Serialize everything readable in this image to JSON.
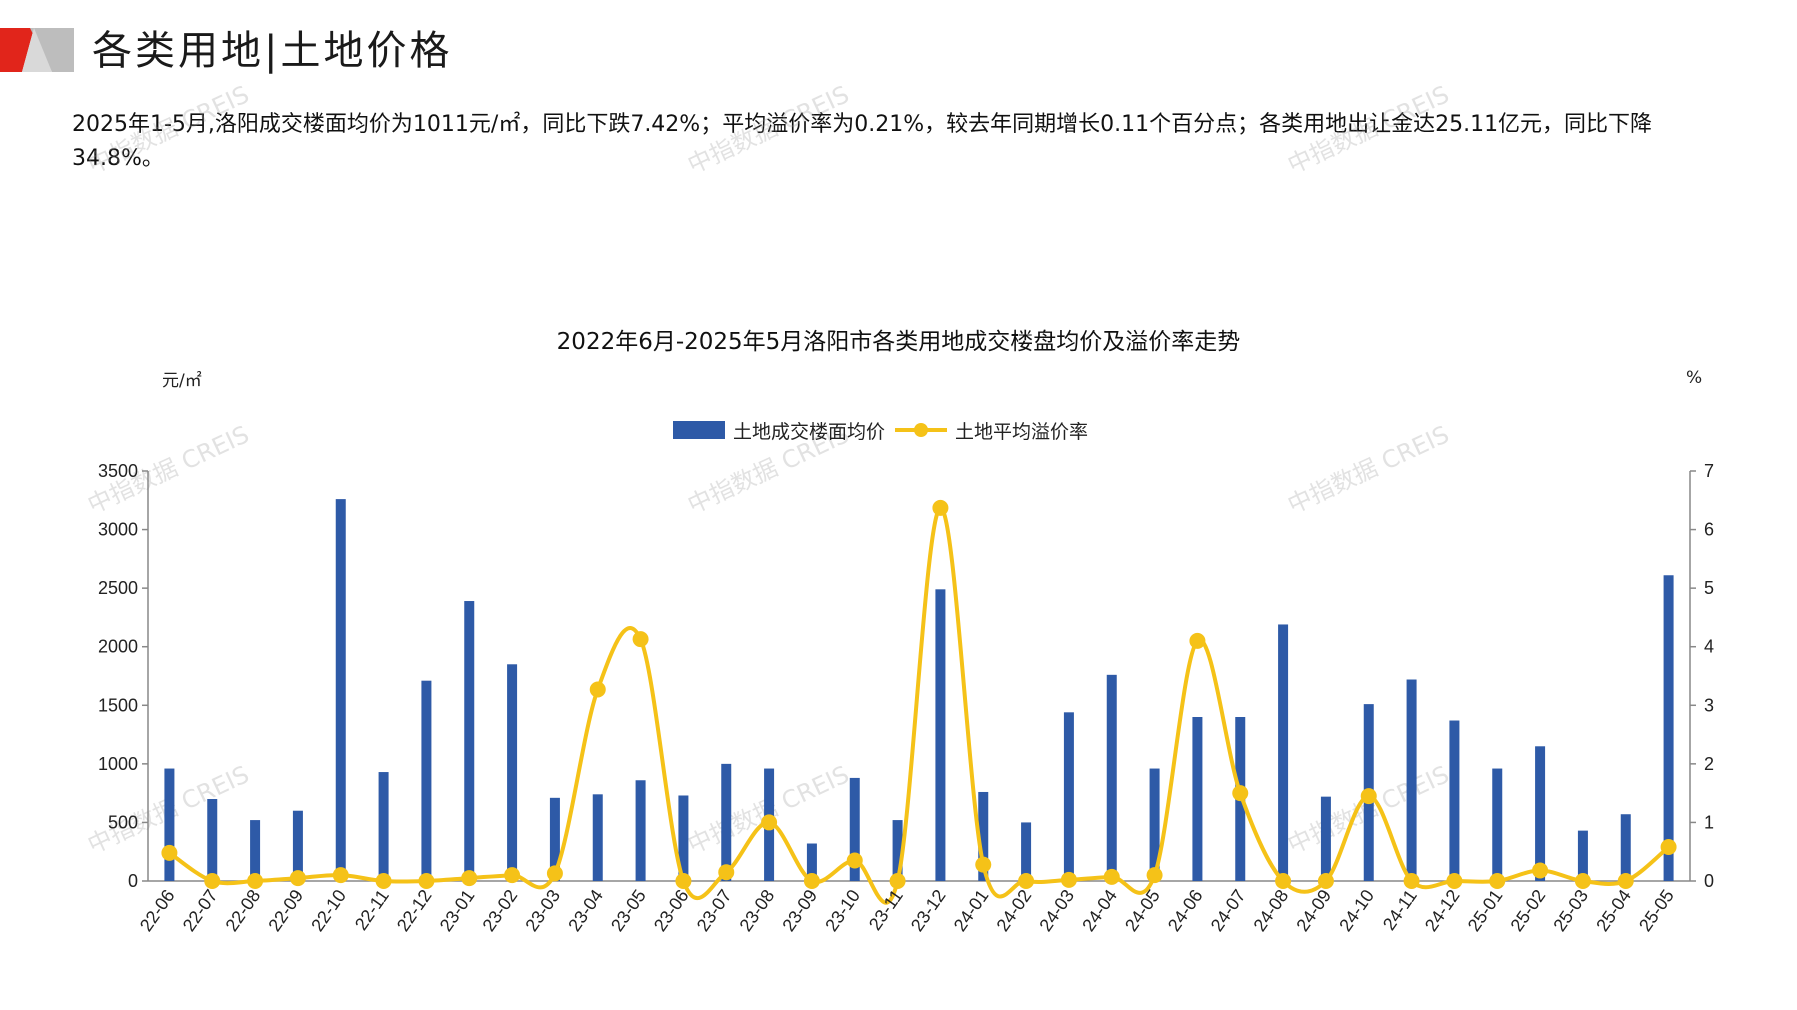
{
  "header": {
    "title": "各类用地|土地价格",
    "accent_color": "#E1251B",
    "mark_gray": "#BDBDBD"
  },
  "summary": {
    "text": "2025年1-5月,洛阳成交楼面均价为1011元/㎡，同比下跌7.42%；平均溢价率为0.21%，较去年同期增长0.11个百分点；各类用地出让金达25.11亿元，同比下降34.8%。"
  },
  "watermark": {
    "text": "中指数据 CREIS"
  },
  "chart_data": {
    "type": "bar",
    "title": "2022年6月-2025年5月洛阳市各类用地成交楼盘均价及溢价率走势",
    "left_unit": "元/㎡",
    "right_unit": "%",
    "legend_position": "top-center",
    "categories": [
      "22-06",
      "22-07",
      "22-08",
      "22-09",
      "22-10",
      "22-11",
      "22-12",
      "23-01",
      "23-02",
      "23-03",
      "23-04",
      "23-05",
      "23-06",
      "23-07",
      "23-08",
      "23-09",
      "23-10",
      "23-11",
      "23-12",
      "24-01",
      "24-02",
      "24-03",
      "24-04",
      "24-05",
      "24-06",
      "24-07",
      "24-08",
      "24-09",
      "24-10",
      "24-11",
      "24-12",
      "25-01",
      "25-02",
      "25-03",
      "25-04",
      "25-05"
    ],
    "y_left": {
      "min": 0,
      "max": 3500,
      "ticks": [
        0,
        500,
        1000,
        1500,
        2000,
        2500,
        3000,
        3500
      ]
    },
    "y_right": {
      "min": 0,
      "max": 7,
      "ticks": [
        0,
        1,
        2,
        3,
        4,
        5,
        6,
        7
      ]
    },
    "grid": false,
    "series": [
      {
        "name": "土地成交楼面均价",
        "kind": "bar",
        "axis": "left",
        "color": "#2E5AA7",
        "values": [
          960,
          700,
          520,
          600,
          3260,
          930,
          1710,
          2390,
          1850,
          710,
          740,
          860,
          730,
          1000,
          960,
          320,
          880,
          520,
          2490,
          760,
          500,
          1440,
          1760,
          960,
          1400,
          1400,
          2190,
          720,
          1510,
          1720,
          1370,
          960,
          1150,
          430,
          570,
          2610
        ]
      },
      {
        "name": "土地平均溢价率",
        "kind": "line",
        "axis": "right",
        "color": "#F5C218",
        "values": [
          0.48,
          0.0,
          0.0,
          0.05,
          0.1,
          0.0,
          0.0,
          0.05,
          0.1,
          0.13,
          3.27,
          4.13,
          0.0,
          0.15,
          1.0,
          0.0,
          0.35,
          0.0,
          6.37,
          0.28,
          0.0,
          0.02,
          0.07,
          0.1,
          4.1,
          1.5,
          0.0,
          0.0,
          1.45,
          0.0,
          0.0,
          0.0,
          0.18,
          0.0,
          0.0,
          0.58
        ]
      }
    ]
  }
}
